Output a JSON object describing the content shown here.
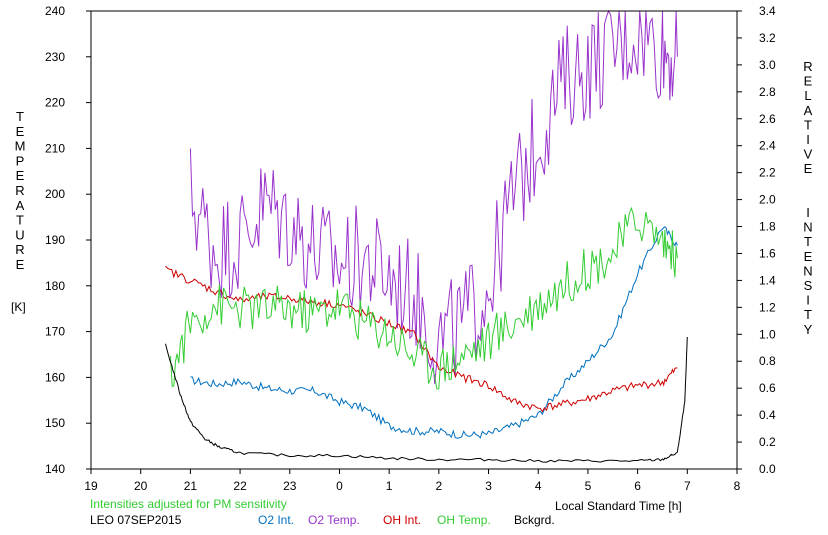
{
  "chart_data": {
    "type": "line",
    "left_axis": {
      "label": "TEMPERATURE",
      "unit": "[K]",
      "range": [
        140,
        240
      ],
      "ticks": [
        "140",
        "150",
        "160",
        "170",
        "180",
        "190",
        "200",
        "210",
        "220",
        "230",
        "240"
      ]
    },
    "right_axis": {
      "label": "RELATIVE  INTENSITY",
      "range": [
        0.0,
        3.4
      ],
      "ticks": [
        "0.0",
        "0.2",
        "0.4",
        "0.6",
        "0.8",
        "1.0",
        "1.2",
        "1.4",
        "1.6",
        "1.8",
        "2.0",
        "2.2",
        "2.4",
        "2.6",
        "2.8",
        "3.0",
        "3.2",
        "3.4"
      ]
    },
    "x_axis": {
      "label": "Local Standard Time [h]",
      "range": [
        19,
        32
      ],
      "ticks": [
        "19",
        "20",
        "21",
        "22",
        "23",
        "0",
        "1",
        "2",
        "3",
        "4",
        "5",
        "6",
        "7",
        "8"
      ]
    },
    "grid": false,
    "legend_position": "bottom",
    "note": "Intensities adjusted for PM sensitivity",
    "station": "LEO 07SEP2015",
    "series": [
      {
        "name": "O2 Int.",
        "axis": "right",
        "color": "#0070c0",
        "x": [
          21.0,
          21.5,
          22.0,
          22.5,
          23.0,
          23.5,
          24.0,
          24.5,
          25.0,
          25.5,
          26.0,
          26.5,
          27.0,
          27.5,
          28.0,
          28.5,
          29.0,
          29.5,
          30.0,
          30.5,
          30.8
        ],
        "y": [
          0.66,
          0.63,
          0.65,
          0.6,
          0.58,
          0.58,
          0.5,
          0.45,
          0.32,
          0.28,
          0.28,
          0.25,
          0.26,
          0.32,
          0.4,
          0.62,
          0.8,
          1.0,
          1.45,
          1.8,
          1.66
        ]
      },
      {
        "name": "O2 Temp.",
        "axis": "left",
        "color": "#9933cc",
        "x": [
          21.0,
          21.5,
          22.0,
          22.5,
          23.0,
          23.5,
          24.0,
          24.5,
          25.0,
          25.5,
          26.0,
          26.5,
          27.0,
          27.5,
          28.0,
          28.5,
          29.0,
          29.5,
          30.0,
          30.5,
          30.8
        ],
        "y": [
          200,
          188,
          190,
          198,
          194,
          188,
          185,
          186,
          182,
          178,
          168,
          172,
          180,
          200,
          212,
          225,
          228,
          232,
          236,
          232,
          230
        ]
      },
      {
        "name": "OH Int.",
        "axis": "right",
        "color": "#cc0000",
        "x": [
          20.5,
          21.0,
          21.5,
          22.0,
          22.5,
          23.0,
          23.5,
          24.0,
          24.5,
          25.0,
          25.5,
          26.0,
          26.5,
          27.0,
          27.5,
          28.0,
          28.5,
          29.0,
          29.5,
          30.0,
          30.5,
          30.8
        ],
        "y": [
          1.48,
          1.4,
          1.32,
          1.25,
          1.28,
          1.27,
          1.24,
          1.22,
          1.15,
          1.08,
          1.0,
          0.75,
          0.68,
          0.62,
          0.5,
          0.45,
          0.48,
          0.52,
          0.58,
          0.62,
          0.64,
          0.75
        ]
      },
      {
        "name": "OH Temp.",
        "axis": "left",
        "color": "#33cc33",
        "x": [
          20.6,
          21.0,
          21.5,
          22.0,
          22.5,
          23.0,
          23.5,
          24.0,
          24.5,
          25.0,
          25.5,
          26.0,
          26.5,
          27.0,
          27.5,
          28.0,
          28.5,
          29.0,
          29.5,
          30.0,
          30.5,
          30.8
        ],
        "y": [
          160,
          172,
          176,
          175,
          175,
          175,
          174,
          176,
          172,
          170,
          165,
          162,
          165,
          168,
          172,
          176,
          180,
          184,
          187,
          195,
          190,
          186
        ]
      },
      {
        "name": "Bckgrd.",
        "axis": "right",
        "color": "#000000",
        "x": [
          20.5,
          20.8,
          21.0,
          21.3,
          21.6,
          22.0,
          23.0,
          24.0,
          25.0,
          26.0,
          27.0,
          28.0,
          29.0,
          30.0,
          30.5,
          30.8,
          30.95,
          31.0
        ],
        "y": [
          0.92,
          0.55,
          0.35,
          0.22,
          0.16,
          0.12,
          0.1,
          0.1,
          0.08,
          0.07,
          0.07,
          0.06,
          0.06,
          0.06,
          0.07,
          0.12,
          0.5,
          0.98
        ]
      }
    ]
  }
}
